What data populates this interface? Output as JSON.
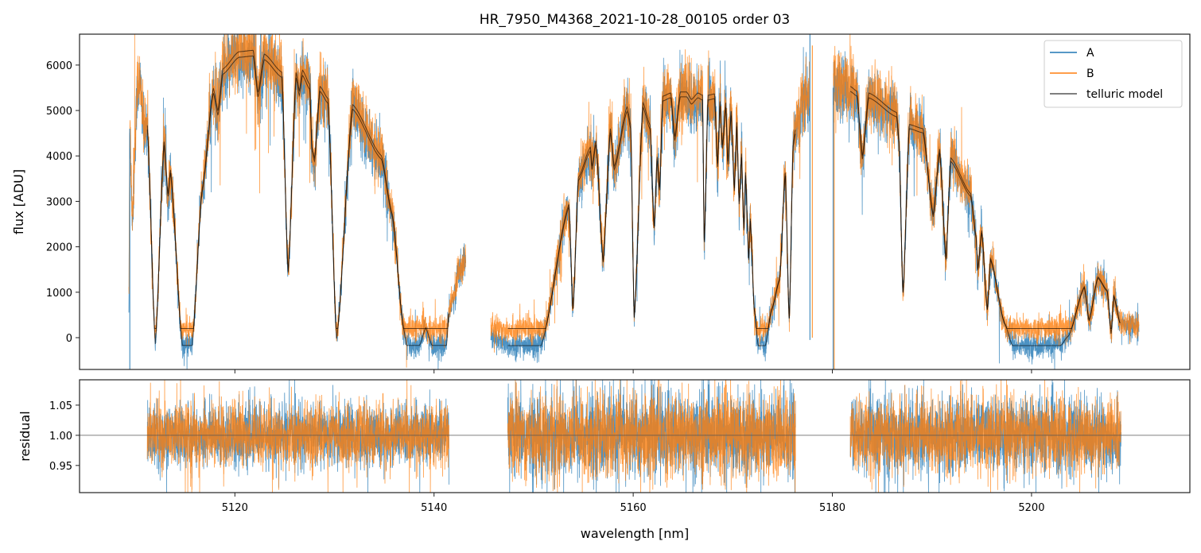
{
  "chart_data": {
    "type": "line",
    "title": "HR_7950_M4368_2021-10-28_00105  order 03",
    "xlabel": "wavelength [nm]",
    "xlim": [
      5104.4,
      5215.9
    ],
    "xticks": [
      5120,
      5140,
      5160,
      5180,
      5200
    ],
    "panels": {
      "flux": {
        "ylabel": "flux [ADU]",
        "ylim": [
          -700,
          6680
        ],
        "yticks": [
          0,
          1000,
          2000,
          3000,
          4000,
          5000,
          6000
        ]
      },
      "residual": {
        "ylabel": "residual",
        "ylim": [
          0.905,
          1.092
        ],
        "yticks": [
          0.95,
          1.0,
          1.05
        ],
        "ytick_labels": [
          "0.95",
          "1.00",
          "1.05"
        ],
        "reference_line": 1.0
      }
    },
    "legend": {
      "placement": "top-right",
      "entries": [
        {
          "label": "A",
          "color": "#1f77b4"
        },
        {
          "label": "B",
          "color": "#ff7f0e"
        },
        {
          "label": "telluric model",
          "color": "#555555"
        }
      ]
    },
    "colors": {
      "A": "#1f77b4",
      "B": "#ff7f0e",
      "model": "#000000"
    },
    "series_B_floor": 200,
    "series_B_scale": 1.02,
    "noise": {
      "flux_base": 130,
      "flux_rel": 0.04,
      "residual_std": [
        0.025,
        0.034,
        0.03
      ]
    },
    "segments": [
      {
        "model_range": [
          5111.21,
          5141.49
        ],
        "trace_A": [
          [
            5109.35,
            600
          ],
          [
            5109.45,
            4600
          ],
          [
            5109.7,
            2600
          ],
          [
            5110.2,
            5400
          ],
          [
            5110.5,
            5600
          ],
          [
            5110.9,
            4400
          ],
          [
            5111.21,
            4580
          ],
          [
            5112.01,
            -140
          ],
          [
            5112.89,
            4230
          ],
          [
            5113.29,
            3110
          ],
          [
            5113.53,
            3620
          ],
          [
            5114.73,
            -170
          ],
          [
            5115.69,
            -170
          ],
          [
            5116.73,
            3230
          ],
          [
            5117.84,
            5380
          ],
          [
            5118.3,
            4900
          ],
          [
            5118.8,
            5800
          ],
          [
            5120.4,
            6170
          ],
          [
            5121.84,
            6200
          ],
          [
            5122.32,
            5300
          ],
          [
            5122.96,
            6120
          ],
          [
            5124.71,
            5730
          ],
          [
            5125.35,
            1430
          ],
          [
            5126.15,
            5720
          ],
          [
            5126.47,
            5330
          ],
          [
            5126.79,
            5770
          ],
          [
            5127.51,
            5470
          ],
          [
            5127.75,
            4110
          ],
          [
            5127.99,
            3880
          ],
          [
            5128.55,
            5420
          ],
          [
            5129.35,
            5160
          ],
          [
            5130.22,
            -30
          ],
          [
            5131.82,
            5030
          ],
          [
            5134.7,
            3930
          ],
          [
            5135.81,
            2660
          ],
          [
            5136.93,
            210
          ],
          [
            5137.25,
            -170
          ],
          [
            5138.53,
            -170
          ],
          [
            5139.17,
            210
          ],
          [
            5139.81,
            -170
          ],
          [
            5141.25,
            -170
          ],
          [
            5141.49,
            560
          ],
          [
            5142.0,
            900
          ],
          [
            5142.5,
            1500
          ],
          [
            5143.2,
            1700
          ]
        ],
        "residual_range": [
          5111.2,
          5141.5
        ]
      },
      {
        "model_range": [
          5147.4,
          5176.3
        ],
        "trace_A": [
          [
            5145.7,
            0
          ],
          [
            5147.4,
            -175
          ],
          [
            5150.75,
            -175
          ],
          [
            5153.55,
            2880
          ],
          [
            5153.95,
            610
          ],
          [
            5154.5,
            3460
          ],
          [
            5155.7,
            4110
          ],
          [
            5155.86,
            3700
          ],
          [
            5156.26,
            4250
          ],
          [
            5156.98,
            1660
          ],
          [
            5157.7,
            4510
          ],
          [
            5158.1,
            3700
          ],
          [
            5159.38,
            4980
          ],
          [
            5159.75,
            4600
          ],
          [
            5160.1,
            440
          ],
          [
            5160.98,
            5070
          ],
          [
            5161.69,
            4590
          ],
          [
            5162.1,
            2410
          ],
          [
            5162.4,
            3900
          ],
          [
            5162.65,
            3230
          ],
          [
            5162.97,
            5210
          ],
          [
            5163.77,
            5280
          ],
          [
            5164.17,
            4340
          ],
          [
            5164.73,
            5300
          ],
          [
            5165.37,
            5300
          ],
          [
            5165.85,
            5140
          ],
          [
            5166.5,
            5280
          ],
          [
            5166.96,
            5230
          ],
          [
            5167.13,
            2060
          ],
          [
            5167.52,
            5230
          ],
          [
            5168.16,
            5260
          ],
          [
            5168.48,
            3760
          ],
          [
            5168.72,
            5100
          ],
          [
            5168.96,
            4160
          ],
          [
            5169.3,
            5070
          ],
          [
            5169.5,
            3810
          ],
          [
            5169.84,
            4890
          ],
          [
            5170.16,
            3230
          ],
          [
            5170.4,
            4650
          ],
          [
            5170.64,
            2940
          ],
          [
            5170.88,
            3970
          ],
          [
            5171.12,
            2360
          ],
          [
            5171.28,
            3570
          ],
          [
            5171.6,
            1710
          ],
          [
            5171.76,
            2570
          ],
          [
            5172.16,
            610
          ],
          [
            5172.56,
            -175
          ],
          [
            5173.27,
            -175
          ],
          [
            5173.9,
            610
          ],
          [
            5174.7,
            1260
          ],
          [
            5175.27,
            3580
          ],
          [
            5175.67,
            380
          ],
          [
            5176.07,
            4230
          ],
          [
            5176.3,
            4500
          ],
          [
            5177.0,
            5100
          ],
          [
            5177.7,
            5400
          ]
        ],
        "residual_range": [
          5147.4,
          5176.3
        ]
      },
      {
        "model_range": [
          5181.8,
          5208.9
        ],
        "trace_A": [
          [
            5180.1,
            5500
          ],
          [
            5181.8,
            5420
          ],
          [
            5182.46,
            5320
          ],
          [
            5183.02,
            3930
          ],
          [
            5183.66,
            5280
          ],
          [
            5186.45,
            4860
          ],
          [
            5186.69,
            4280
          ],
          [
            5187.09,
            960
          ],
          [
            5187.73,
            4600
          ],
          [
            5189.09,
            4510
          ],
          [
            5190.13,
            2660
          ],
          [
            5190.77,
            4070
          ],
          [
            5191.41,
            1710
          ],
          [
            5191.88,
            3880
          ],
          [
            5193.88,
            3110
          ],
          [
            5194.44,
            2190
          ],
          [
            5194.6,
            1490
          ],
          [
            5195.0,
            2310
          ],
          [
            5195.56,
            610
          ],
          [
            5195.88,
            1710
          ],
          [
            5197.3,
            310
          ],
          [
            5198.1,
            -175
          ],
          [
            5202.9,
            -175
          ],
          [
            5203.7,
            35
          ],
          [
            5205.3,
            1100
          ],
          [
            5205.78,
            380
          ],
          [
            5206.66,
            1310
          ],
          [
            5207.6,
            1020
          ],
          [
            5208.0,
            90
          ],
          [
            5208.26,
            910
          ],
          [
            5208.9,
            310
          ],
          [
            5209.5,
            300
          ],
          [
            5210.8,
            250
          ]
        ],
        "residual_range": [
          5181.8,
          5209.0
        ]
      }
    ],
    "spikes": [
      {
        "series": "A",
        "x": 5109.45,
        "y": [
          -700,
          4600
        ]
      },
      {
        "series": "A",
        "x": 5177.75,
        "y": [
          -50,
          6680
        ]
      },
      {
        "series": "B",
        "x": 5177.99,
        "y": [
          0,
          6430
        ]
      },
      {
        "series": "A",
        "x": 5180.08,
        "y": [
          -700,
          5500
        ]
      },
      {
        "series": "B",
        "x": 5180.18,
        "y": [
          -700,
          5400
        ]
      }
    ]
  }
}
